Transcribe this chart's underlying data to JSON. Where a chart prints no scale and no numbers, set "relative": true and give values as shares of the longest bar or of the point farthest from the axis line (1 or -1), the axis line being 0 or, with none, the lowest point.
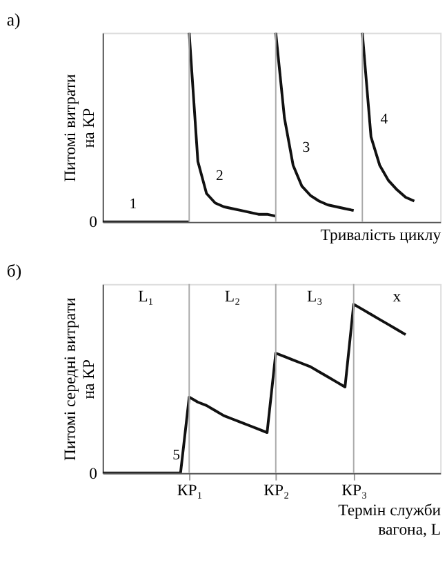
{
  "chart_data": [
    {
      "type": "line",
      "relative": true,
      "title": "а)",
      "xlabel": "Тривалість циклу",
      "ylabel": "Питомі витрати на КР",
      "tick_labels": false,
      "line_style": "solid",
      "marker": "none",
      "categories": [
        null,
        null,
        null,
        null,
        null,
        null,
        null,
        null,
        null,
        null,
        null,
        null,
        null,
        null,
        null,
        null,
        null,
        null,
        null,
        null,
        null,
        null,
        null,
        null,
        null,
        null,
        null,
        null,
        null,
        null,
        null,
        null,
        null,
        null,
        null,
        null,
        null,
        null,
        null,
        null
      ],
      "series": [
        {
          "name": "1",
          "color": "#111111",
          "values": [
            0,
            0,
            0,
            0,
            0,
            0,
            0,
            0,
            0,
            0,
            0,
            null,
            null,
            null,
            null,
            null,
            null,
            null,
            null,
            null,
            null,
            null,
            null,
            null,
            null,
            null,
            null,
            null,
            null,
            null,
            null,
            null,
            null,
            null,
            null,
            null,
            null,
            null,
            null,
            null
          ]
        },
        {
          "name": "2",
          "color": "#111111",
          "values": [
            null,
            null,
            null,
            null,
            null,
            null,
            null,
            null,
            null,
            null,
            1.0,
            0.32,
            0.15,
            0.1,
            0.08,
            0.07,
            0.06,
            0.05,
            0.04,
            0.04,
            0.03,
            null,
            null,
            null,
            null,
            null,
            null,
            null,
            null,
            null,
            null,
            null,
            null,
            null,
            null,
            null,
            null,
            null,
            null,
            null
          ]
        },
        {
          "name": "3",
          "color": "#111111",
          "values": [
            null,
            null,
            null,
            null,
            null,
            null,
            null,
            null,
            null,
            null,
            null,
            null,
            null,
            null,
            null,
            null,
            null,
            null,
            null,
            null,
            1.0,
            0.55,
            0.3,
            0.19,
            0.14,
            0.11,
            0.09,
            0.08,
            0.07,
            0.06,
            null,
            null,
            null,
            null,
            null,
            null,
            null,
            null,
            null,
            null
          ]
        },
        {
          "name": "4",
          "color": "#111111",
          "values": [
            null,
            null,
            null,
            null,
            null,
            null,
            null,
            null,
            null,
            null,
            null,
            null,
            null,
            null,
            null,
            null,
            null,
            null,
            null,
            null,
            null,
            null,
            null,
            null,
            null,
            null,
            null,
            null,
            null,
            null,
            1.0,
            0.45,
            0.3,
            0.22,
            0.17,
            0.13,
            0.11,
            null,
            null,
            null
          ]
        }
      ],
      "grid": "x",
      "annotations": [
        "0"
      ]
    },
    {
      "type": "line",
      "relative": true,
      "title": "б)",
      "xlabel": "Термін служби вагона, L",
      "ylabel": "Питомі середні витрати на КР",
      "tick_labels": "x",
      "line_style": "solid",
      "marker": "none",
      "categories": [
        null,
        null,
        null,
        null,
        null,
        null,
        null,
        null,
        null,
        null,
        "КР₁",
        null,
        null,
        null,
        null,
        null,
        null,
        null,
        null,
        null,
        "КР₂",
        null,
        null,
        null,
        null,
        null,
        null,
        null,
        null,
        "КР₃",
        null,
        null,
        null,
        null,
        null,
        null,
        null,
        null,
        null,
        null
      ],
      "series": [
        {
          "name": "5",
          "color": "#111111",
          "values": [
            0,
            0,
            0,
            0,
            0,
            0,
            0,
            0,
            0,
            0,
            0.45,
            0.42,
            0.4,
            0.37,
            0.34,
            0.32,
            0.3,
            0.28,
            0.26,
            0.24,
            0.71,
            0.69,
            0.67,
            0.65,
            0.63,
            0.6,
            0.57,
            0.54,
            0.51,
            1.0,
            0.97,
            0.94,
            0.91,
            0.88,
            0.85,
            0.82,
            null,
            null,
            null,
            null
          ]
        }
      ],
      "grid": "x",
      "annotations": [
        "0",
        "L₁",
        "L₂",
        "L₃",
        "x"
      ]
    }
  ]
}
